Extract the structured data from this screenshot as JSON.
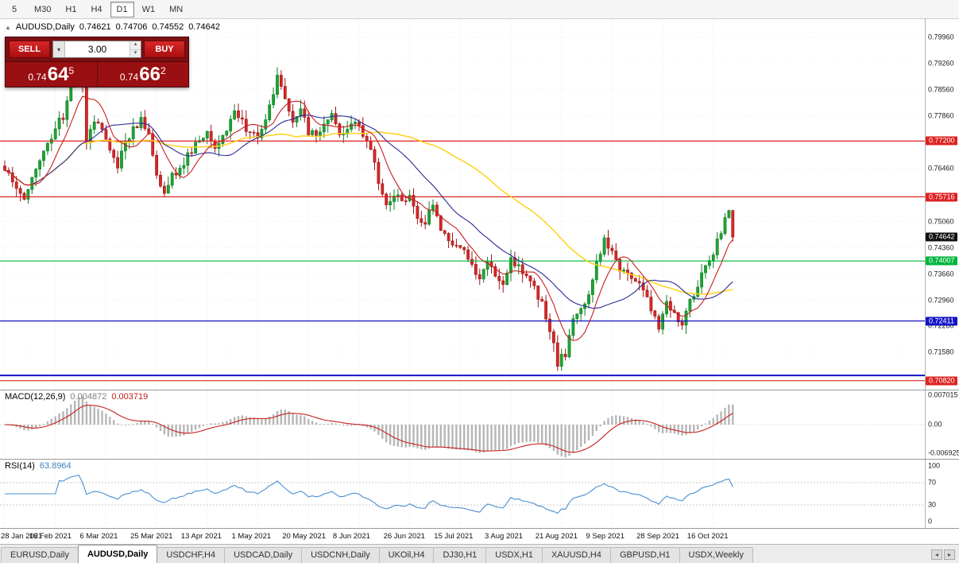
{
  "app": {
    "toolbar": {
      "timeframes": [
        "5",
        "M30",
        "H1",
        "H4",
        "D1",
        "W1",
        "MN"
      ],
      "active": "D1"
    },
    "bottom_tabs": {
      "tabs": [
        "EURUSD,Daily",
        "AUDUSD,Daily",
        "USDCHF,H4",
        "USDCAD,Daily",
        "USDCNH,Daily",
        "UKOil,H4",
        "DJ30,H1",
        "USDX,H1",
        "XAUUSD,H4",
        "GBPUSD,H1",
        "USDX,Weekly"
      ],
      "active": "AUDUSD,Daily"
    }
  },
  "header": {
    "symbol": "AUDUSD,Daily",
    "open": "0.74621",
    "high": "0.74706",
    "low": "0.74552",
    "close": "0.74642"
  },
  "trade_widget": {
    "sell_label": "SELL",
    "buy_label": "BUY",
    "lot_size": "3.00",
    "bid": {
      "prefix": "0.74",
      "big": "64",
      "sup": "5"
    },
    "ask": {
      "prefix": "0.74",
      "big": "66",
      "sup": "2"
    }
  },
  "chart_data": {
    "type": "candlestick",
    "title": "AUDUSD,Daily",
    "bars": 188,
    "last_close": 0.74642,
    "price_axis": {
      "range": [
        0.7058,
        0.8045
      ],
      "ticks": [
        "0.79960",
        "0.79260",
        "0.78560",
        "0.77860",
        "0.76460",
        "0.75060",
        "0.74360",
        "0.73660",
        "0.72960",
        "0.72280",
        "0.71580"
      ],
      "levels": [
        {
          "value": 0.772,
          "label": "0.77200",
          "color": "#dd2222"
        },
        {
          "value": 0.75716,
          "label": "0.75716",
          "color": "#dd2222"
        },
        {
          "value": 0.74007,
          "label": "0.74007",
          "color": "#00b43c"
        },
        {
          "value": 0.72411,
          "label": "0.72411",
          "color": "#1414c8"
        },
        {
          "value": 0.7096,
          "label": "",
          "color": "#1414c8",
          "width": 2
        },
        {
          "value": 0.7082,
          "label": "0.70820",
          "color": "#dd2222"
        }
      ],
      "current": {
        "value": 0.74642,
        "label": "0.74642",
        "bg": "#111111"
      }
    },
    "x_axis": {
      "ticks": [
        [
          0,
          "28 Jan 2021"
        ],
        [
          13,
          "16 Feb 2021"
        ],
        [
          26,
          "6 Mar 2021"
        ],
        [
          39,
          "25 Mar 2021"
        ],
        [
          52,
          "13 Apr 2021"
        ],
        [
          65,
          "1 May 2021"
        ],
        [
          78,
          "20 May 2021"
        ],
        [
          91,
          "8 Jun 2021"
        ],
        [
          104,
          "26 Jun 2021"
        ],
        [
          117,
          "15 Jul 2021"
        ],
        [
          130,
          "3 Aug 2021"
        ],
        [
          143,
          "21 Aug 2021"
        ],
        [
          156,
          "9 Sep 2021"
        ],
        [
          169,
          "28 Sep 2021"
        ],
        [
          182,
          "16 Oct 2021"
        ]
      ]
    },
    "anchors": [
      [
        0,
        0.7655
      ],
      [
        3,
        0.7605
      ],
      [
        5,
        0.7572
      ],
      [
        8,
        0.7645
      ],
      [
        11,
        0.7725
      ],
      [
        13,
        0.7748
      ],
      [
        15,
        0.779
      ],
      [
        17,
        0.787
      ],
      [
        19,
        0.7935
      ],
      [
        20,
        0.787
      ],
      [
        21,
        0.773
      ],
      [
        23,
        0.7772
      ],
      [
        25,
        0.7745
      ],
      [
        27,
        0.7695
      ],
      [
        29,
        0.766
      ],
      [
        31,
        0.7715
      ],
      [
        33,
        0.7752
      ],
      [
        35,
        0.778
      ],
      [
        37,
        0.7745
      ],
      [
        39,
        0.762
      ],
      [
        41,
        0.759
      ],
      [
        43,
        0.7625
      ],
      [
        46,
        0.766
      ],
      [
        49,
        0.7715
      ],
      [
        52,
        0.7735
      ],
      [
        54,
        0.77
      ],
      [
        57,
        0.7755
      ],
      [
        59,
        0.779
      ],
      [
        61,
        0.777
      ],
      [
        63,
        0.7742
      ],
      [
        65,
        0.7718
      ],
      [
        67,
        0.7785
      ],
      [
        69,
        0.7855
      ],
      [
        70,
        0.789
      ],
      [
        72,
        0.784
      ],
      [
        74,
        0.7775
      ],
      [
        76,
        0.78
      ],
      [
        78,
        0.7745
      ],
      [
        80,
        0.7728
      ],
      [
        82,
        0.7762
      ],
      [
        84,
        0.7782
      ],
      [
        86,
        0.7742
      ],
      [
        88,
        0.7752
      ],
      [
        90,
        0.7762
      ],
      [
        92,
        0.7738
      ],
      [
        94,
        0.7695
      ],
      [
        96,
        0.7615
      ],
      [
        98,
        0.7552
      ],
      [
        100,
        0.7582
      ],
      [
        102,
        0.756
      ],
      [
        104,
        0.7582
      ],
      [
        106,
        0.7512
      ],
      [
        108,
        0.7492
      ],
      [
        110,
        0.7562
      ],
      [
        112,
        0.7482
      ],
      [
        114,
        0.7442
      ],
      [
        116,
        0.7455
      ],
      [
        118,
        0.7432
      ],
      [
        120,
        0.7392
      ],
      [
        122,
        0.7362
      ],
      [
        124,
        0.7392
      ],
      [
        126,
        0.7372
      ],
      [
        128,
        0.7342
      ],
      [
        130,
        0.7398
      ],
      [
        132,
        0.7382
      ],
      [
        134,
        0.7362
      ],
      [
        136,
        0.7338
      ],
      [
        138,
        0.7282
      ],
      [
        140,
        0.7222
      ],
      [
        142,
        0.7128
      ],
      [
        144,
        0.7155
      ],
      [
        146,
        0.7245
      ],
      [
        148,
        0.7272
      ],
      [
        150,
        0.7305
      ],
      [
        152,
        0.7392
      ],
      [
        154,
        0.7452
      ],
      [
        156,
        0.7428
      ],
      [
        158,
        0.7372
      ],
      [
        160,
        0.7362
      ],
      [
        162,
        0.7338
      ],
      [
        164,
        0.7328
      ],
      [
        166,
        0.7262
      ],
      [
        168,
        0.7232
      ],
      [
        170,
        0.7292
      ],
      [
        172,
        0.7268
      ],
      [
        174,
        0.7232
      ],
      [
        176,
        0.7292
      ],
      [
        178,
        0.7342
      ],
      [
        180,
        0.7392
      ],
      [
        182,
        0.7425
      ],
      [
        184,
        0.7478
      ],
      [
        186,
        0.7535
      ],
      [
        187,
        0.74642
      ]
    ],
    "colors": {
      "up": "#1fa332",
      "up_border": "#0c7d24",
      "down": "#d62828",
      "down_border": "#9e1414",
      "ma_fast": "#c81e1e",
      "ma_mid": "#2a2a9a",
      "ma_slow": "#ffd21e",
      "macd_hist": "#b6b6b6",
      "macd_signal": "#c82020",
      "rsi": "#4a90d2"
    },
    "ma_periods": {
      "fast": 8,
      "mid": 21,
      "slow": 55
    },
    "macd": {
      "title": "MACD(12,26,9)",
      "main_value": "0.004872",
      "signal_value": "0.003719",
      "range": 0.0082,
      "axis_labels": [
        "0.007015",
        "0.00",
        "-0.006925"
      ],
      "axis_values": [
        0.007015,
        0,
        -0.006925
      ]
    },
    "rsi": {
      "title": "RSI(14)",
      "value": "63.8964",
      "axis_ticks": [
        [
          100,
          "100"
        ],
        [
          70,
          "70"
        ],
        [
          30,
          "30"
        ],
        [
          0,
          "0"
        ]
      ],
      "levels": [
        70,
        30
      ]
    }
  }
}
